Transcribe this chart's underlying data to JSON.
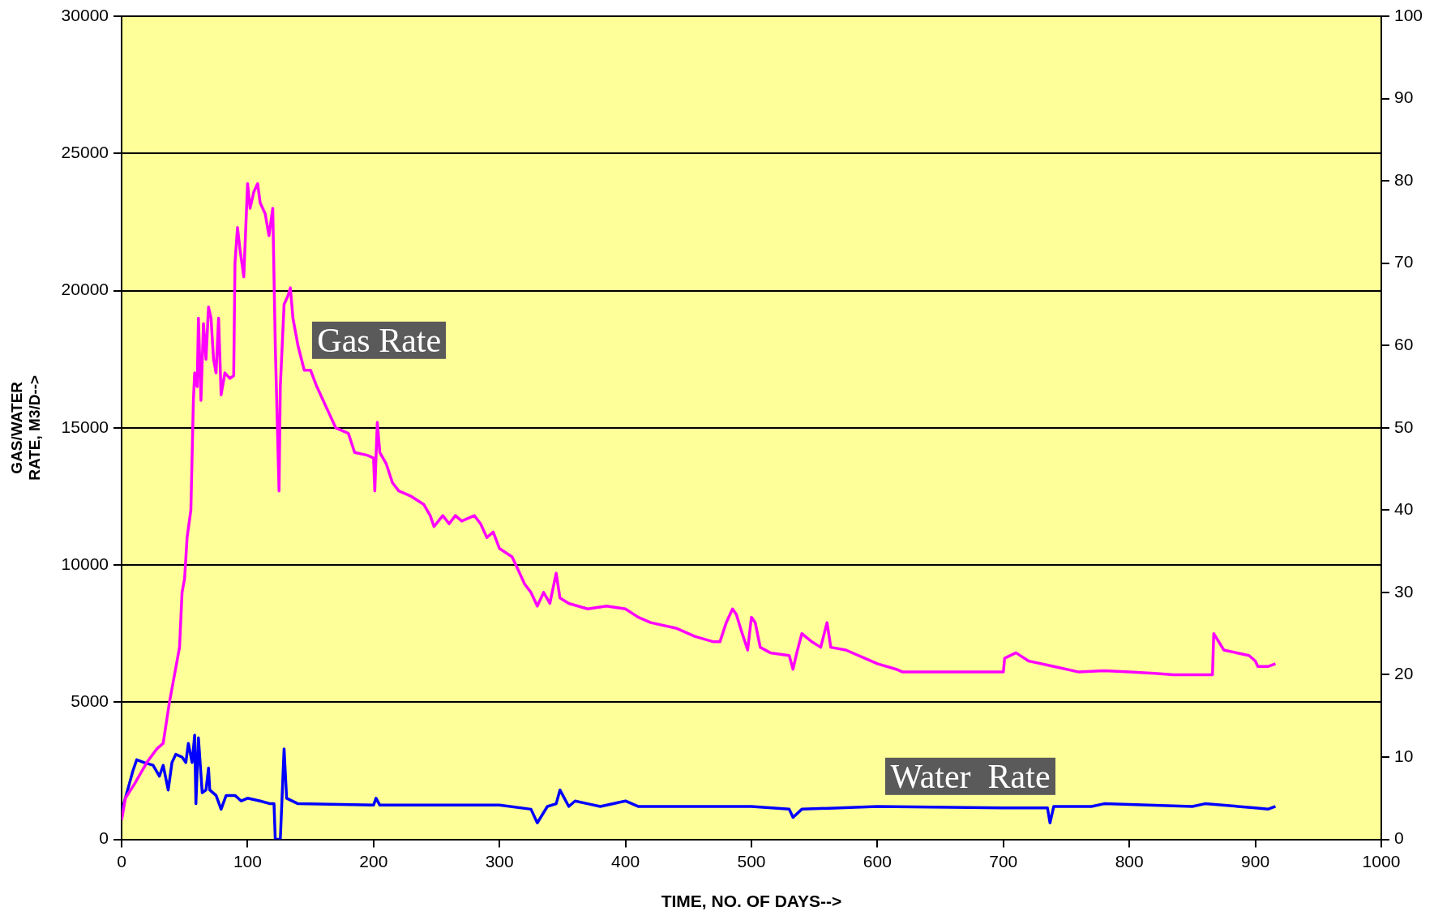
{
  "chart_data": {
    "type": "line",
    "xlabel": "TIME, NO. OF DAYS-->",
    "ylabel": "GAS/WATER\nRATE, M3/D-->",
    "xlim": [
      0,
      1000
    ],
    "xticks": [
      0,
      100,
      200,
      300,
      400,
      500,
      600,
      700,
      800,
      900,
      1000
    ],
    "ylim": [
      0,
      30000
    ],
    "yticks": [
      0,
      5000,
      10000,
      15000,
      20000,
      25000,
      30000
    ],
    "y2lim": [
      0,
      100
    ],
    "y2ticks": [
      0,
      10,
      20,
      30,
      40,
      50,
      60,
      70,
      80,
      90,
      100
    ],
    "grid": "y",
    "legend": false,
    "marker": "none",
    "line_style": "solid",
    "series": [
      {
        "color": "#ff00ff",
        "x": [
          0,
          3,
          10,
          20,
          28,
          33,
          38,
          42,
          46,
          48,
          50,
          52,
          55,
          57,
          58,
          60,
          61,
          63,
          65,
          67,
          69,
          71,
          73,
          75,
          77,
          79,
          82,
          86,
          89,
          90,
          92,
          94,
          97,
          100,
          102,
          105,
          108,
          110,
          114,
          117,
          120,
          122,
          125,
          126,
          129,
          132,
          134,
          136,
          140,
          145,
          150,
          155,
          160,
          165,
          170,
          180,
          185,
          195,
          200,
          201,
          203,
          205,
          210,
          215,
          220,
          230,
          240,
          245,
          248,
          255,
          260,
          265,
          270,
          280,
          285,
          290,
          295,
          300,
          310,
          315,
          320,
          325,
          330,
          335,
          340,
          345,
          348,
          355,
          370,
          385,
          400,
          410,
          420,
          440,
          455,
          470,
          475,
          480,
          485,
          488,
          492,
          497,
          500,
          503,
          507,
          515,
          530,
          533,
          536,
          540,
          548,
          555,
          560,
          563,
          575,
          590,
          600,
          615,
          620,
          640,
          690,
          700,
          701,
          710,
          720,
          740,
          760,
          780,
          800,
          820,
          835,
          860,
          866,
          867,
          875,
          895,
          900,
          902,
          910,
          916
        ],
        "values": [
          700,
          1500,
          2000,
          2800,
          3300,
          3500,
          5000,
          6000,
          7000,
          9000,
          9500,
          11000,
          12000,
          16000,
          17000,
          16500,
          19000,
          16000,
          18800,
          17500,
          19400,
          19000,
          17500,
          17000,
          19000,
          16200,
          17000,
          16800,
          16900,
          21000,
          22300,
          21500,
          20500,
          23900,
          23000,
          23600,
          23900,
          23200,
          22800,
          22000,
          23000,
          18000,
          12700,
          16500,
          19500,
          19800,
          20100,
          19000,
          18000,
          17100,
          17100,
          16500,
          16000,
          15500,
          15000,
          14800,
          14100,
          14000,
          13900,
          12700,
          15200,
          14100,
          13700,
          13000,
          12700,
          12500,
          12200,
          11800,
          11400,
          11800,
          11500,
          11800,
          11600,
          11800,
          11500,
          11000,
          11200,
          10600,
          10300,
          9800,
          9300,
          9000,
          8500,
          9000,
          8600,
          9700,
          8800,
          8600,
          8400,
          8500,
          8400,
          8100,
          7900,
          7700,
          7400,
          7200,
          7200,
          7900,
          8400,
          8200,
          7600,
          6900,
          8100,
          7900,
          7000,
          6800,
          6700,
          6200,
          6800,
          7500,
          7200,
          7000,
          7900,
          7000,
          6900,
          6600,
          6400,
          6200,
          6100,
          6100,
          6100,
          6100,
          6600,
          6800,
          6500,
          6300,
          6100,
          6150,
          6100,
          6050,
          6000,
          6000,
          6000,
          7500,
          6900,
          6700,
          6500,
          6300,
          6300,
          6400
        ]
      },
      {
        "color": "#0000ff",
        "x": [
          0,
          3,
          6,
          9,
          12,
          18,
          25,
          30,
          33,
          37,
          40,
          43,
          48,
          51,
          53,
          56,
          58,
          59,
          61,
          64,
          67,
          69,
          70,
          75,
          79,
          83,
          90,
          95,
          100,
          110,
          118,
          121,
          122,
          126,
          129,
          131,
          140,
          200,
          202,
          205,
          300,
          325,
          330,
          338,
          345,
          348,
          355,
          360,
          370,
          380,
          400,
          410,
          500,
          530,
          533,
          540,
          600,
          700,
          735,
          737,
          740,
          770,
          780,
          850,
          860,
          900,
          910,
          916
        ],
        "values": [
          1000,
          1500,
          2000,
          2500,
          2900,
          2800,
          2700,
          2300,
          2700,
          1800,
          2800,
          3100,
          3000,
          2800,
          3500,
          2800,
          3800,
          1300,
          3700,
          1700,
          1800,
          2600,
          1800,
          1600,
          1100,
          1600,
          1600,
          1400,
          1500,
          1400,
          1300,
          1300,
          0,
          0,
          3300,
          1500,
          1300,
          1250,
          1500,
          1250,
          1250,
          1100,
          600,
          1200,
          1300,
          1800,
          1200,
          1400,
          1300,
          1200,
          1400,
          1200,
          1200,
          1100,
          800,
          1100,
          1200,
          1150,
          1150,
          600,
          1200,
          1200,
          1300,
          1200,
          1300,
          1150,
          1100,
          1200
        ]
      }
    ],
    "annotations": [
      {
        "text": "Gas Rate",
        "x": 145,
        "y": 17100
      },
      {
        "text": "Water  Rate",
        "x": 600,
        "y": 1200
      }
    ]
  }
}
